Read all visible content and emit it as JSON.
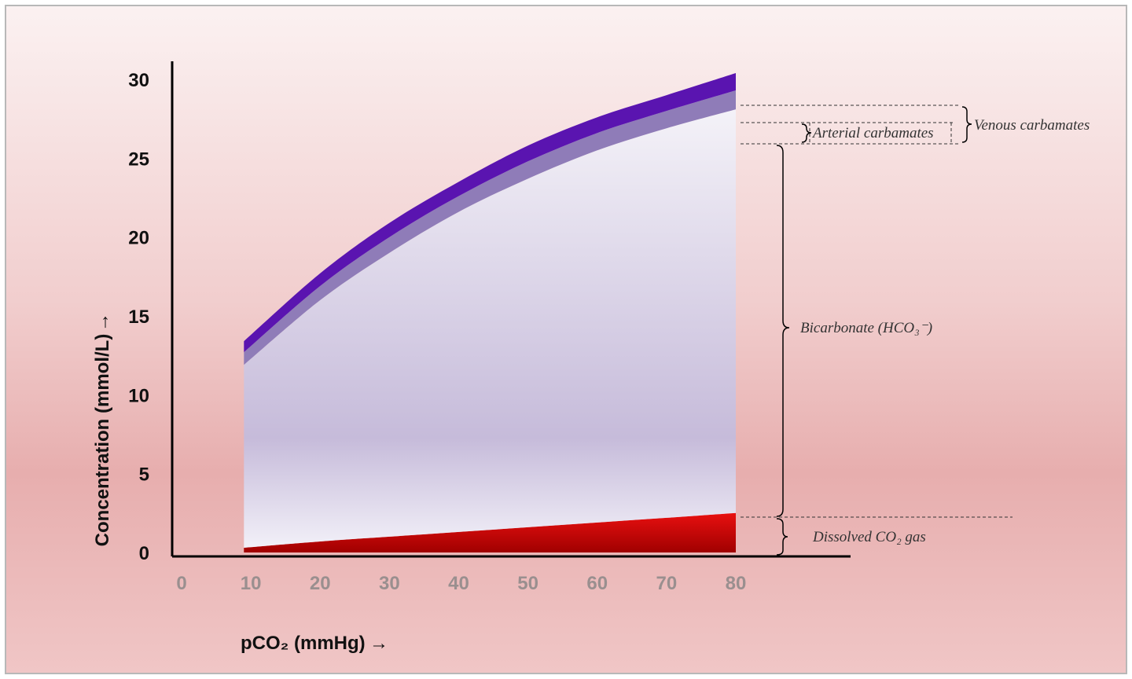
{
  "chart_data": {
    "type": "area",
    "xlabel": "pCO₂ (mmHg)",
    "xlabel_arrow": "→",
    "ylabel": "Concentration (mmol/L)",
    "ylabel_arrow": "→",
    "x_ticks": [
      "0",
      "10",
      "20",
      "30",
      "40",
      "50",
      "60",
      "70",
      "80"
    ],
    "y_ticks": [
      "0",
      "5",
      "10",
      "15",
      "20",
      "25",
      "30"
    ],
    "xlim": [
      0,
      80
    ],
    "ylim": [
      0,
      30
    ],
    "x": [
      9,
      20,
      30,
      40,
      50,
      60,
      70,
      80
    ],
    "series": [
      {
        "name": "Dissolved CO₂ gas",
        "color": "#d81010",
        "values": [
          0.3,
          0.7,
          1.0,
          1.3,
          1.6,
          1.9,
          2.2,
          2.5
        ]
      },
      {
        "name": "Bicarbonate (HCO₃⁻)",
        "color": "#c9bedb",
        "values": [
          11.6,
          15.3,
          18.0,
          20.3,
          22.1,
          23.6,
          24.7,
          25.6
        ]
      },
      {
        "name": "Arterial carbamates",
        "color": "#8f7cb8",
        "values": [
          0.8,
          0.9,
          1.0,
          1.0,
          1.1,
          1.1,
          1.1,
          1.2
        ]
      },
      {
        "name": "Venous carbamates",
        "color": "#5a14b0",
        "values": [
          0.7,
          0.8,
          0.9,
          0.9,
          1.0,
          1.0,
          1.0,
          1.1
        ]
      }
    ],
    "annotations": {
      "venous": "Venous carbamates",
      "arterial": "Arterial carbamates",
      "bicarbonate": "Bicarbonate (HCO₃⁻)",
      "dissolved": "Dissolved CO₂ gas"
    }
  }
}
